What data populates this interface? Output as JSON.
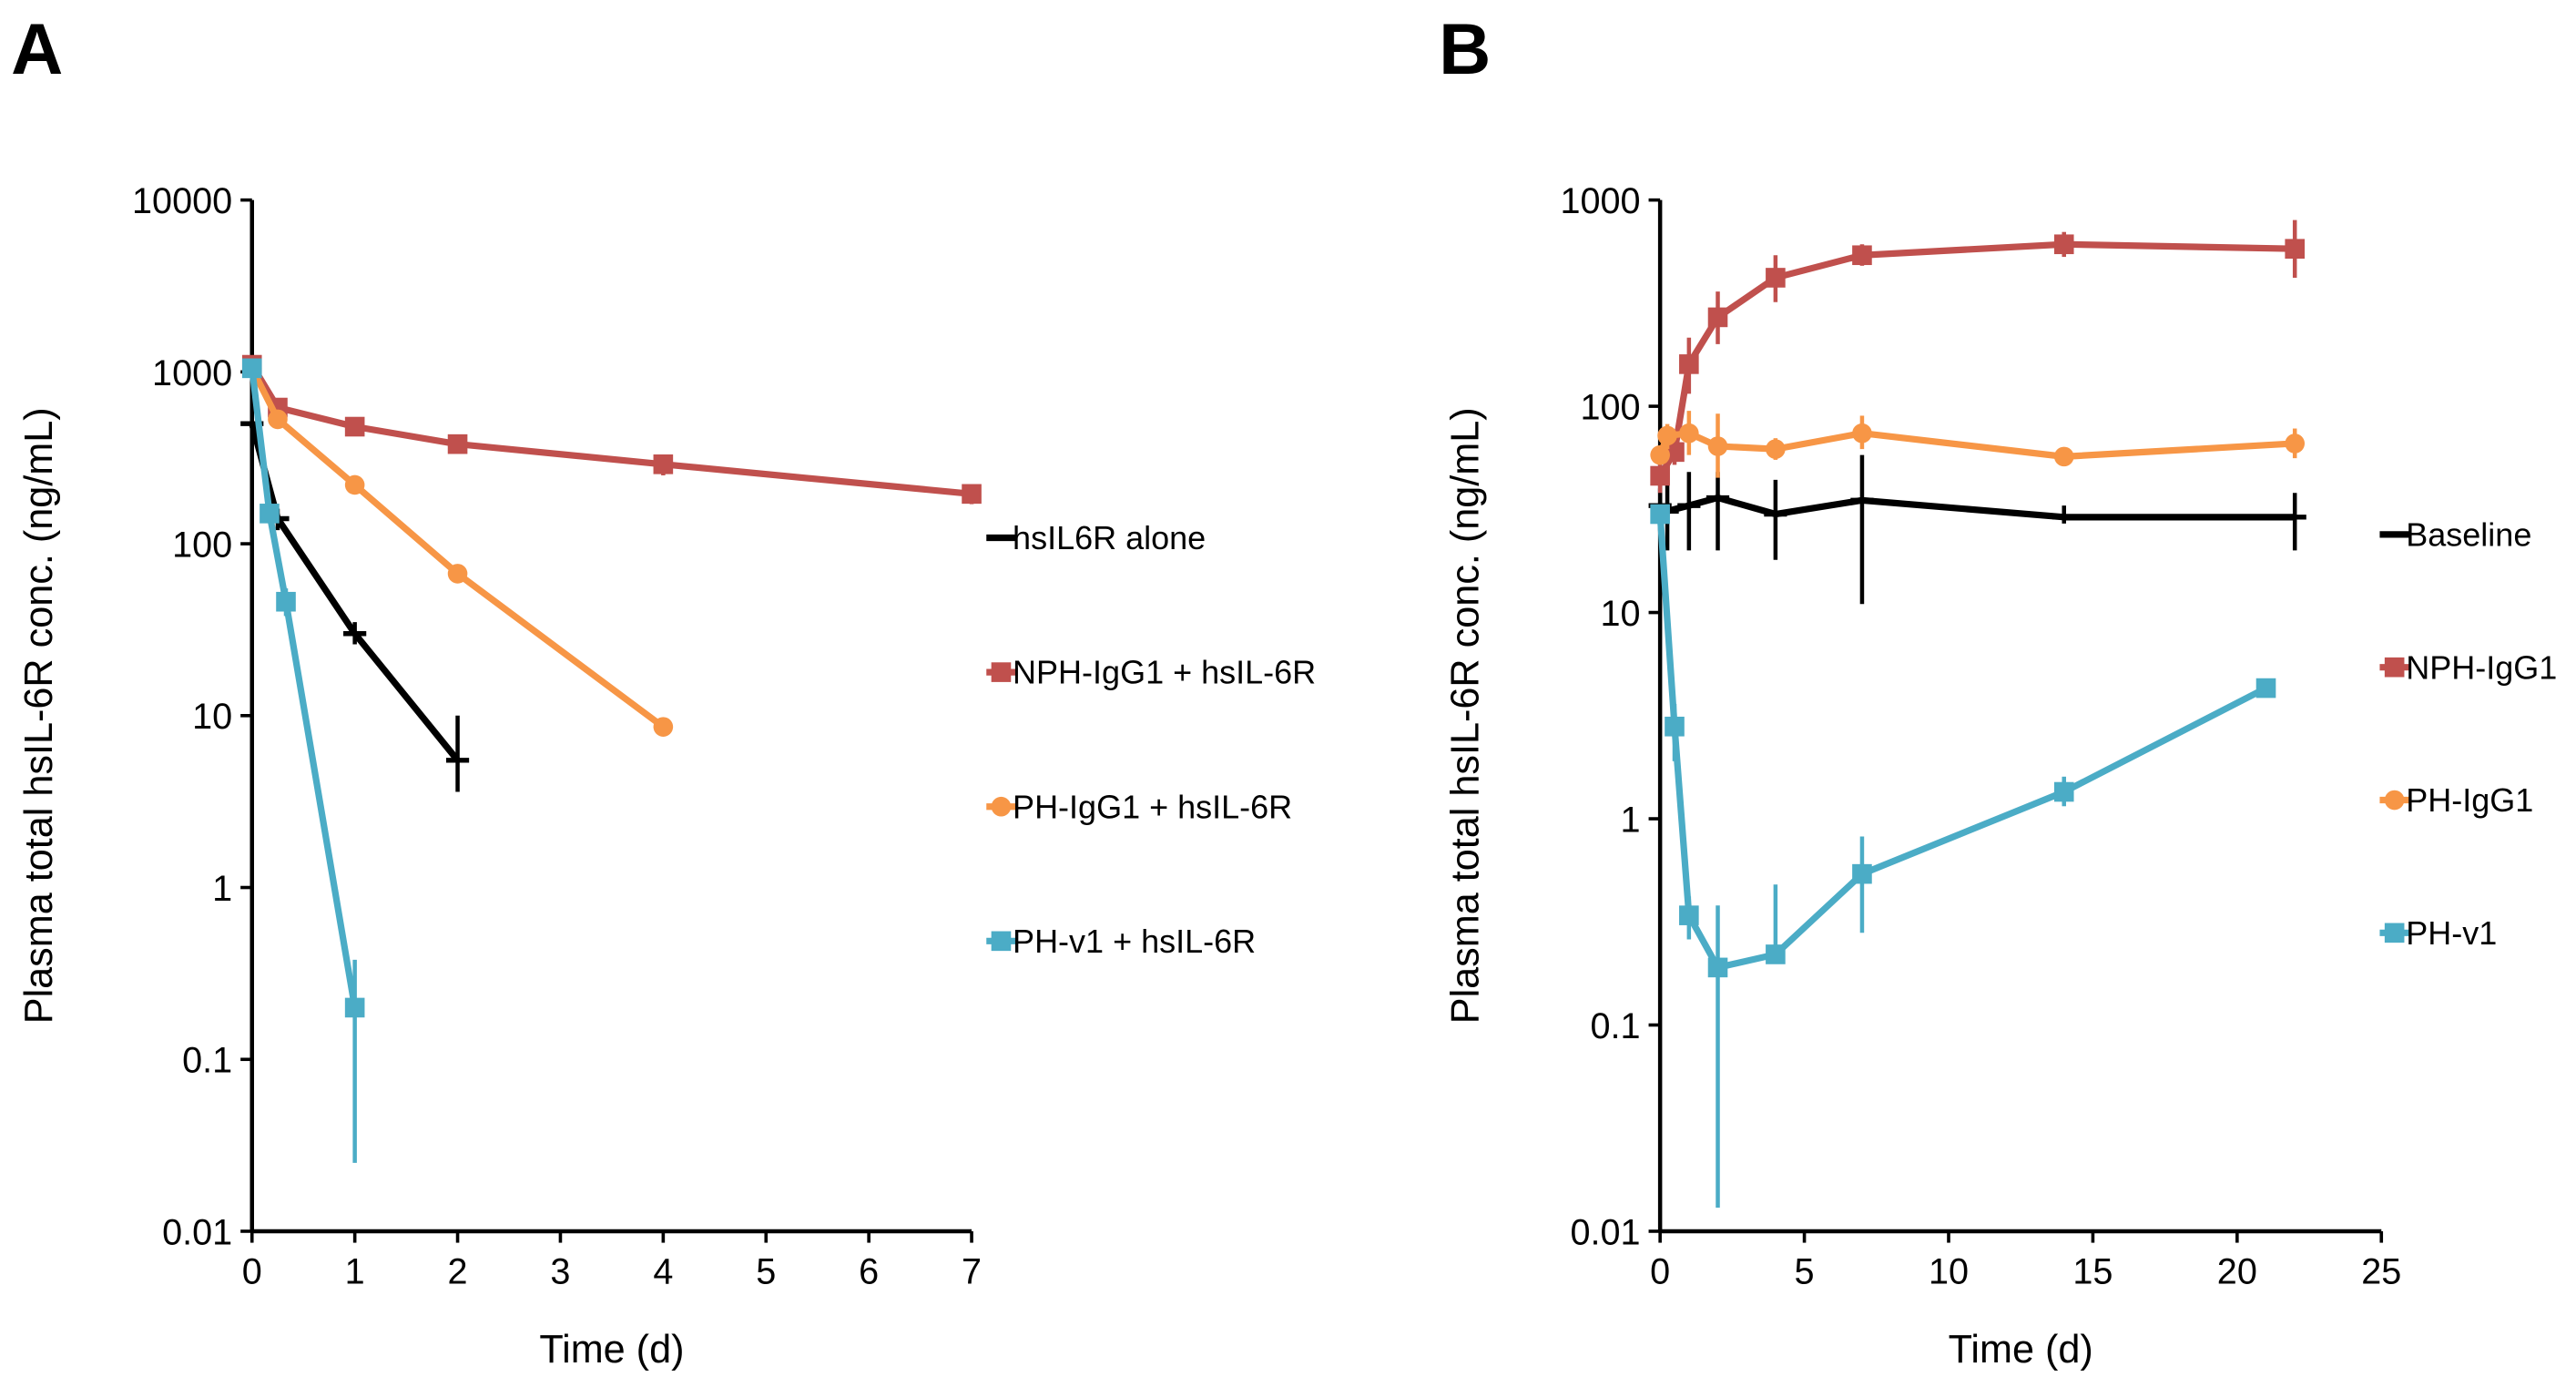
{
  "chart_data": [
    {
      "panel_label": "A",
      "type": "line",
      "xlabel": "Time (d)",
      "ylabel": "Plasma total hsIL-6R conc. (ng/mL)",
      "xlim": [
        0,
        7
      ],
      "ylim": [
        0.01,
        10000
      ],
      "yscale": "log",
      "xticks": [
        "0",
        "1",
        "2",
        "3",
        "4",
        "5",
        "6",
        "7"
      ],
      "yticks": [
        "0.01",
        "0.1",
        "1",
        "10",
        "100",
        "1000",
        "10000"
      ],
      "grid": false,
      "legend_placement": "right",
      "series": [
        {
          "name": "hsIL6R alone",
          "color": "#000000",
          "marker": "dash",
          "x": [
            0,
            0.25,
            1,
            2
          ],
          "y": [
            500,
            140,
            30,
            5.5
          ],
          "err": [
            [
              500,
              500
            ],
            [
              120,
              160
            ],
            [
              26,
              35
            ],
            [
              3.6,
              10
            ]
          ]
        },
        {
          "name": "NPH-IgG1 + hsIL-6R",
          "color": "#c0504d",
          "marker": "square",
          "x": [
            0,
            0.25,
            1,
            2,
            4,
            7
          ],
          "y": [
            1100,
            620,
            480,
            380,
            290,
            195
          ],
          "err": [
            [
              1000,
              1200
            ],
            [
              580,
              660
            ],
            [
              450,
              510
            ],
            [
              350,
              410
            ],
            [
              250,
              330
            ],
            [
              170,
              220
            ]
          ]
        },
        {
          "name": "PH-IgG1 + hsIL-6R",
          "color": "#f79646",
          "marker": "circle",
          "x": [
            0,
            0.25,
            1,
            2,
            4
          ],
          "y": [
            1050,
            530,
            220,
            67,
            8.6
          ],
          "err": [
            [
              1000,
              1100
            ],
            [
              470,
              590
            ],
            [
              210,
              230
            ],
            [
              64,
              70
            ],
            [
              8.2,
              9
            ]
          ]
        },
        {
          "name": "PH-v1 + hsIL-6R",
          "color": "#4bacc6",
          "marker": "square",
          "x": [
            0,
            0.17,
            0.33,
            1
          ],
          "y": [
            1050,
            150,
            46,
            0.2
          ],
          "err": [
            [
              1000,
              1100
            ],
            [
              135,
              165
            ],
            [
              38,
              55
            ],
            [
              0.025,
              0.38
            ]
          ]
        }
      ]
    },
    {
      "panel_label": "B",
      "type": "line",
      "xlabel": "Time (d)",
      "ylabel": "Plasma total hsIL-6R conc. (ng/mL)",
      "xlim": [
        0,
        25
      ],
      "ylim": [
        0.01,
        1000
      ],
      "yscale": "log",
      "xticks": [
        "0",
        "5",
        "10",
        "15",
        "20",
        "25"
      ],
      "yticks": [
        "0.01",
        "0.1",
        "1",
        "10",
        "100",
        "1000"
      ],
      "grid": false,
      "legend_placement": "right",
      "series": [
        {
          "name": "Baseline",
          "color": "#000000",
          "marker": "dash",
          "x": [
            0,
            0.25,
            1,
            2,
            4,
            7,
            14,
            22
          ],
          "y": [
            33,
            31,
            33,
            36,
            30,
            35,
            29,
            29
          ],
          "err": [
            [
              25,
              40
            ],
            [
              20,
              45
            ],
            [
              20,
              48
            ],
            [
              20,
              48
            ],
            [
              18,
              44
            ],
            [
              11,
              58
            ],
            [
              27,
              33
            ],
            [
              20,
              38
            ]
          ]
        },
        {
          "name": "NPH-IgG1",
          "color": "#c0504d",
          "marker": "square",
          "x": [
            0,
            0.5,
            1,
            2,
            4,
            7,
            14,
            22
          ],
          "y": [
            46,
            60,
            160,
            270,
            420,
            540,
            610,
            580
          ],
          "err": [
            [
              38,
              55
            ],
            [
              52,
              70
            ],
            [
              115,
              215
            ],
            [
              200,
              360
            ],
            [
              320,
              540
            ],
            [
              480,
              610
            ],
            [
              530,
              700
            ],
            [
              420,
              800
            ]
          ]
        },
        {
          "name": "PH-IgG1",
          "color": "#f79646",
          "marker": "circle",
          "x": [
            0,
            0.25,
            1,
            2,
            4,
            7,
            14,
            22
          ],
          "y": [
            58,
            72,
            74,
            64,
            62,
            74,
            57,
            66
          ],
          "err": [
            [
              55,
              62
            ],
            [
              62,
              82
            ],
            [
              58,
              95
            ],
            [
              45,
              92
            ],
            [
              55,
              70
            ],
            [
              62,
              90
            ],
            [
              52,
              63
            ],
            [
              56,
              78
            ]
          ]
        },
        {
          "name": "PH-v1",
          "color": "#4bacc6",
          "marker": "square",
          "x": [
            0,
            0.5,
            1,
            2,
            4,
            7,
            14,
            21
          ],
          "y": [
            30,
            2.8,
            0.34,
            0.19,
            0.22,
            0.54,
            1.35,
            4.3
          ],
          "err": [
            [
              28,
              32
            ],
            [
              1.9,
              3.6
            ],
            [
              0.26,
              0.42
            ],
            [
              0.013,
              0.38
            ],
            [
              0.2,
              0.48
            ],
            [
              0.28,
              0.82
            ],
            [
              1.15,
              1.6
            ],
            [
              4.1,
              4.5
            ]
          ]
        }
      ]
    }
  ]
}
